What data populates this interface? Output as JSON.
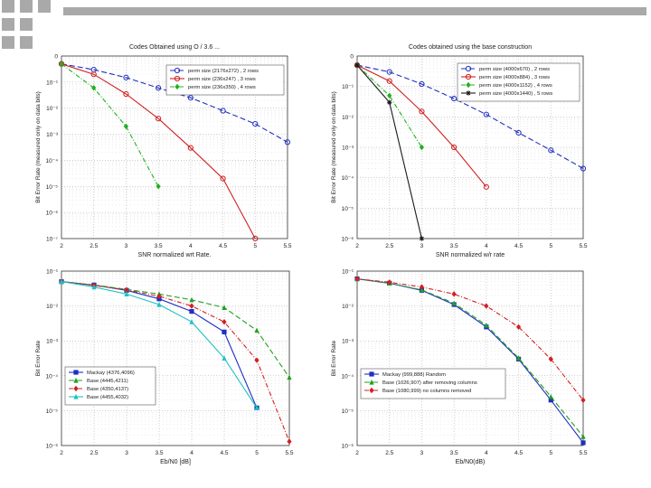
{
  "slide": {
    "accent_color": "#a9a9a9"
  },
  "chart_data": [
    {
      "type": "line",
      "title": "Codes Obtained using O / 3.6 ...",
      "xlabel": "SNR normalized wrt Rate.",
      "ylabel": "Bit Error Rate (measured only on data bits)",
      "yscale": "log",
      "xlim": [
        2,
        5.5
      ],
      "ylim_exp": [
        -7,
        0
      ],
      "xticks": [
        "2",
        "2.5",
        "3",
        "3.5",
        "4",
        "4.5",
        "5",
        "5.5"
      ],
      "yticks": [
        "0",
        "10⁻¹",
        "10⁻²",
        "10⁻³",
        "10⁻⁴",
        "10⁻⁵",
        "10⁻⁶",
        "10⁻⁷"
      ],
      "grid": true,
      "legend_position": "top-right",
      "series": [
        {
          "name": "perm size (2176x272) , 2 rows",
          "color": "#1f2fbf",
          "dash": "6,3",
          "marker": "circle",
          "x": [
            2,
            2.5,
            3,
            3.5,
            4,
            4.5,
            5,
            5.5
          ],
          "y": [
            0.5,
            0.3,
            0.15,
            0.06,
            0.025,
            0.008,
            0.0025,
            0.0005
          ]
        },
        {
          "name": "perm size (236x247) , 3 rows",
          "color": "#d02020",
          "dash": "",
          "marker": "circle",
          "x": [
            2,
            2.5,
            3,
            3.5,
            4,
            4.5,
            5
          ],
          "y": [
            0.5,
            0.2,
            0.035,
            0.004,
            0.0003,
            2e-05,
            1e-07
          ]
        },
        {
          "name": "perm size (236x350) , 4 rows",
          "color": "#20b020",
          "dash": "5,2,1,2",
          "marker": "diamond",
          "x": [
            2,
            2.5,
            3,
            3.5
          ],
          "y": [
            0.5,
            0.06,
            0.002,
            1e-05
          ]
        }
      ]
    },
    {
      "type": "line",
      "title": "Codes obtained using the base construction",
      "xlabel": "SNR normalized w/r rate",
      "ylabel": "Bit Error Rate (measured only on data bits)",
      "yscale": "log",
      "xlim": [
        2,
        5.5
      ],
      "ylim_exp": [
        -6,
        0
      ],
      "xticks": [
        "2",
        "2.5",
        "3",
        "3.5",
        "4",
        "4.5",
        "5",
        "5.5"
      ],
      "yticks": [
        "0",
        "10⁻¹",
        "10⁻²",
        "10⁻³",
        "10⁻⁴",
        "10⁻⁵",
        "10⁻⁶"
      ],
      "grid": true,
      "legend_position": "top-right",
      "series": [
        {
          "name": "perm size (4000x670) , 2 rows",
          "color": "#1f2fbf",
          "dash": "6,3",
          "marker": "circle",
          "x": [
            2,
            2.5,
            3,
            3.5,
            4,
            4.5,
            5,
            5.5
          ],
          "y": [
            0.5,
            0.3,
            0.12,
            0.04,
            0.012,
            0.003,
            0.0008,
            0.0002
          ]
        },
        {
          "name": "perm size (4000x884) , 3 rows",
          "color": "#d02020",
          "dash": "",
          "marker": "circle",
          "x": [
            2,
            2.5,
            3,
            3.5,
            4
          ],
          "y": [
            0.5,
            0.15,
            0.015,
            0.001,
            5e-05
          ]
        },
        {
          "name": "perm size (4000x1152) , 4 rows",
          "color": "#20b020",
          "dash": "5,2,1,2",
          "marker": "diamond",
          "x": [
            2,
            2.5,
            3
          ],
          "y": [
            0.5,
            0.05,
            0.001
          ]
        },
        {
          "name": "perm size (4000x1440) , 5 rows",
          "color": "#1a1a1a",
          "dash": "",
          "marker": "star",
          "x": [
            2,
            2.5,
            3
          ],
          "y": [
            0.5,
            0.03,
            1e-06
          ]
        }
      ]
    },
    {
      "type": "line",
      "title": "",
      "xlabel": "Eb/N0 [dB]",
      "ylabel": "Bit Error Rate",
      "yscale": "log",
      "xlim": [
        2,
        5.5
      ],
      "ylim_exp": [
        -6,
        -1
      ],
      "xticks": [
        "2",
        "2.5",
        "3",
        "3.5",
        "4",
        "4.5",
        "5",
        "5.5"
      ],
      "yticks": [
        "10⁻¹",
        "10⁻²",
        "10⁻³",
        "10⁻⁴",
        "10⁻⁵",
        "10⁻⁶"
      ],
      "grid": true,
      "legend_position": "bottom-left",
      "series": [
        {
          "name": "Mackay (4376,4096)",
          "color": "#1f2fbf",
          "dash": "",
          "marker": "square",
          "x": [
            2,
            2.5,
            3,
            3.5,
            4,
            4.5,
            5
          ],
          "y": [
            0.05,
            0.04,
            0.028,
            0.016,
            0.007,
            0.0018,
            1.2e-05
          ]
        },
        {
          "name": "Base (4445,4211)",
          "color": "#20a020",
          "dash": "6,3",
          "marker": "triangle",
          "x": [
            2,
            2.5,
            3,
            3.5,
            4,
            4.5,
            5,
            5.5
          ],
          "y": [
            0.05,
            0.04,
            0.03,
            0.022,
            0.015,
            0.009,
            0.002,
            9e-05
          ]
        },
        {
          "name": "Base (4350,4137)",
          "color": "#d02020",
          "dash": "5,2,1,2",
          "marker": "diamond",
          "x": [
            2,
            2.5,
            3,
            3.5,
            4,
            4.5,
            5,
            5.5
          ],
          "y": [
            0.05,
            0.039,
            0.029,
            0.019,
            0.01,
            0.0035,
            0.00028,
            1.3e-06
          ]
        },
        {
          "name": "Base (4455,4032)",
          "color": "#20c0c0",
          "dash": "",
          "marker": "triangle",
          "x": [
            2,
            2.5,
            3,
            3.5,
            4,
            4.5,
            5
          ],
          "y": [
            0.05,
            0.035,
            0.022,
            0.011,
            0.0035,
            0.00032,
            1.2e-05
          ]
        }
      ]
    },
    {
      "type": "line",
      "title": "",
      "xlabel": "Eb/N0(dB)",
      "ylabel": "Bit Error Rate",
      "yscale": "log",
      "xlim": [
        2,
        5.5
      ],
      "ylim_exp": [
        -6,
        -1
      ],
      "xticks": [
        "2",
        "2.5",
        "3",
        "3.5",
        "4",
        "4.5",
        "5",
        "5.5"
      ],
      "yticks": [
        "10⁻¹",
        "10⁻²",
        "10⁻³",
        "10⁻⁴",
        "10⁻⁵",
        "10⁻⁶"
      ],
      "grid": true,
      "legend_position": "bottom-left",
      "series": [
        {
          "name": "Mackay (999,888) Random",
          "color": "#1f2fbf",
          "dash": "",
          "marker": "square",
          "x": [
            2,
            2.5,
            3,
            3.5,
            4,
            4.5,
            5,
            5.5
          ],
          "y": [
            0.06,
            0.045,
            0.028,
            0.011,
            0.0025,
            0.0003,
            2e-05,
            1.2e-06
          ]
        },
        {
          "name": "Base (1026,907) after removing columns",
          "color": "#20a020",
          "dash": "6,3",
          "marker": "triangle",
          "x": [
            2,
            2.5,
            3,
            3.5,
            4,
            4.5,
            5,
            5.5
          ],
          "y": [
            0.06,
            0.045,
            0.029,
            0.012,
            0.0028,
            0.00032,
            2.5e-05,
            1.8e-06
          ]
        },
        {
          "name": "Base (1080,999) no columns removed",
          "color": "#d02020",
          "dash": "5,2,1,2",
          "marker": "diamond",
          "x": [
            2,
            2.5,
            3,
            3.5,
            4,
            4.5,
            5,
            5.5
          ],
          "y": [
            0.06,
            0.048,
            0.035,
            0.022,
            0.01,
            0.0025,
            0.0003,
            2e-05
          ]
        }
      ]
    }
  ]
}
